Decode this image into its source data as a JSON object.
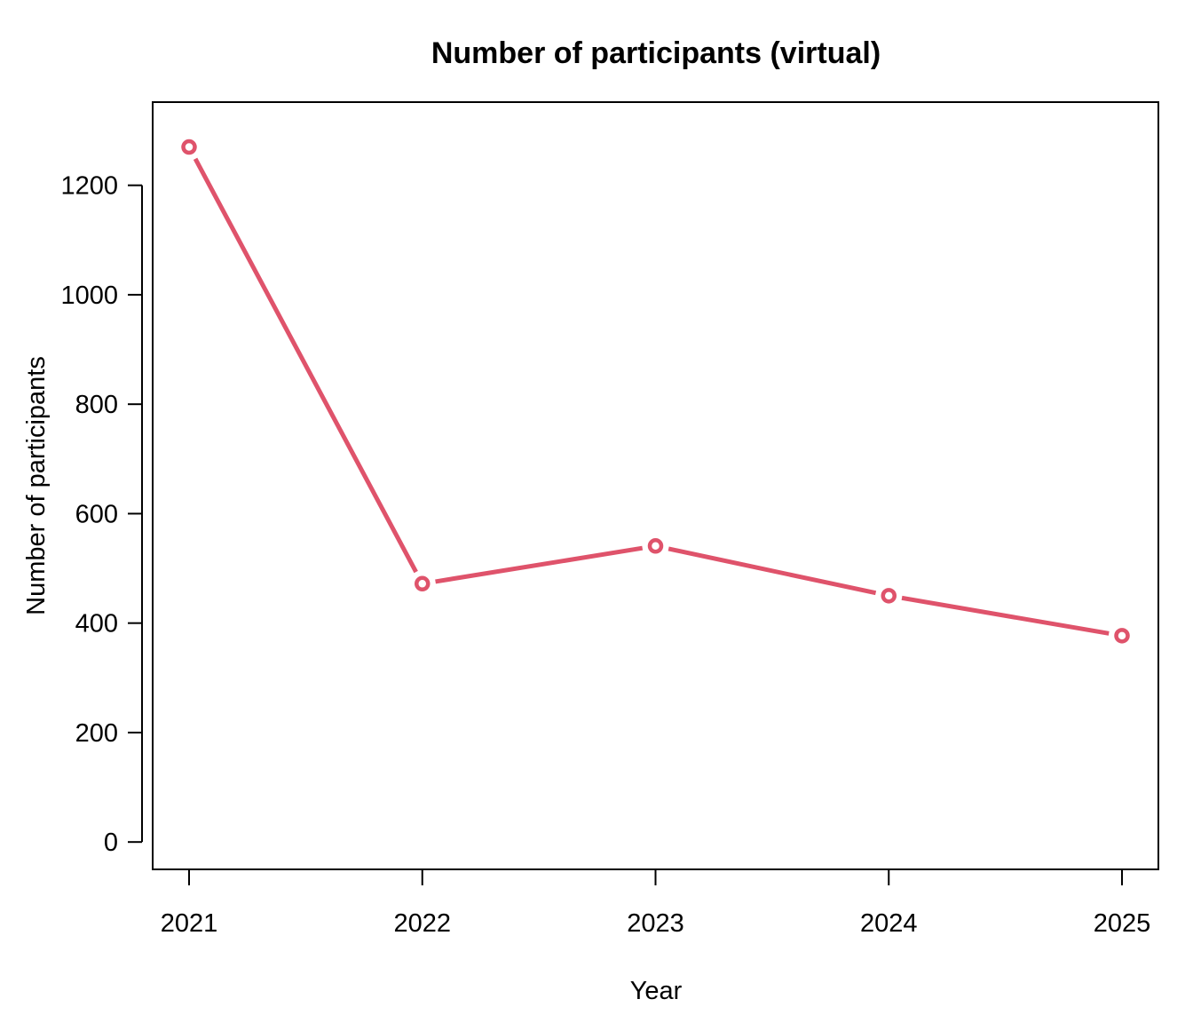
{
  "chart_data": {
    "type": "line",
    "title": "Number of participants (virtual)",
    "xlabel": "Year",
    "ylabel": "Number of participants",
    "x": [
      2021,
      2022,
      2023,
      2024,
      2025
    ],
    "x_tick_labels": [
      "2021",
      "2022",
      "2023",
      "2024",
      "2025"
    ],
    "y_ticks": [
      0,
      200,
      400,
      600,
      800,
      1000,
      1200
    ],
    "y_tick_labels": [
      "0",
      "200",
      "400",
      "600",
      "800",
      "1000",
      "1200"
    ],
    "ylim": [
      -50,
      1352
    ],
    "grid": false,
    "legend": "none",
    "series": [
      {
        "values": [
          1270,
          472,
          541,
          450,
          377
        ],
        "color": "#DF536B"
      }
    ]
  }
}
